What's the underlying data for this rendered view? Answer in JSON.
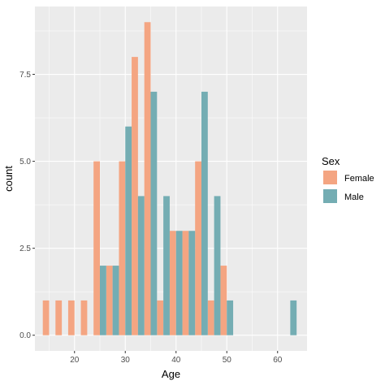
{
  "chart_data": {
    "type": "bar",
    "xlabel": "Age",
    "ylabel": "count",
    "xlim": [
      12.2,
      65.8
    ],
    "ylim": [
      -0.45,
      9.45
    ],
    "x_ticks": [
      20,
      30,
      40,
      50,
      60
    ],
    "y_ticks": [
      0,
      2.5,
      5,
      7.5
    ],
    "x_tick_labels": [
      "20",
      "30",
      "40",
      "50",
      "60"
    ],
    "y_tick_labels": [
      "0.0",
      "2.5",
      "5.0",
      "7.5"
    ],
    "grid": true,
    "bin_width": 2.5,
    "legend": {
      "title": "Sex",
      "position": "right"
    },
    "series": [
      {
        "name": "Female",
        "color": "#F4A582",
        "x": [
          15,
          17.5,
          20,
          22.5,
          25,
          27.5,
          30,
          32.5,
          35,
          37.5,
          40,
          42.5,
          45,
          47.5,
          50
        ],
        "values": [
          1,
          1,
          1,
          1,
          5,
          2,
          5,
          8,
          9,
          1,
          3,
          3,
          5,
          1,
          2
        ]
      },
      {
        "name": "Male",
        "color": "#74ADB3",
        "x": [
          25,
          27.5,
          30,
          32.5,
          35,
          37.5,
          40,
          42.5,
          45,
          47.5,
          50,
          62.5
        ],
        "values": [
          2,
          2,
          6,
          4,
          7,
          4,
          3,
          3,
          7,
          4,
          1,
          1
        ]
      }
    ]
  }
}
